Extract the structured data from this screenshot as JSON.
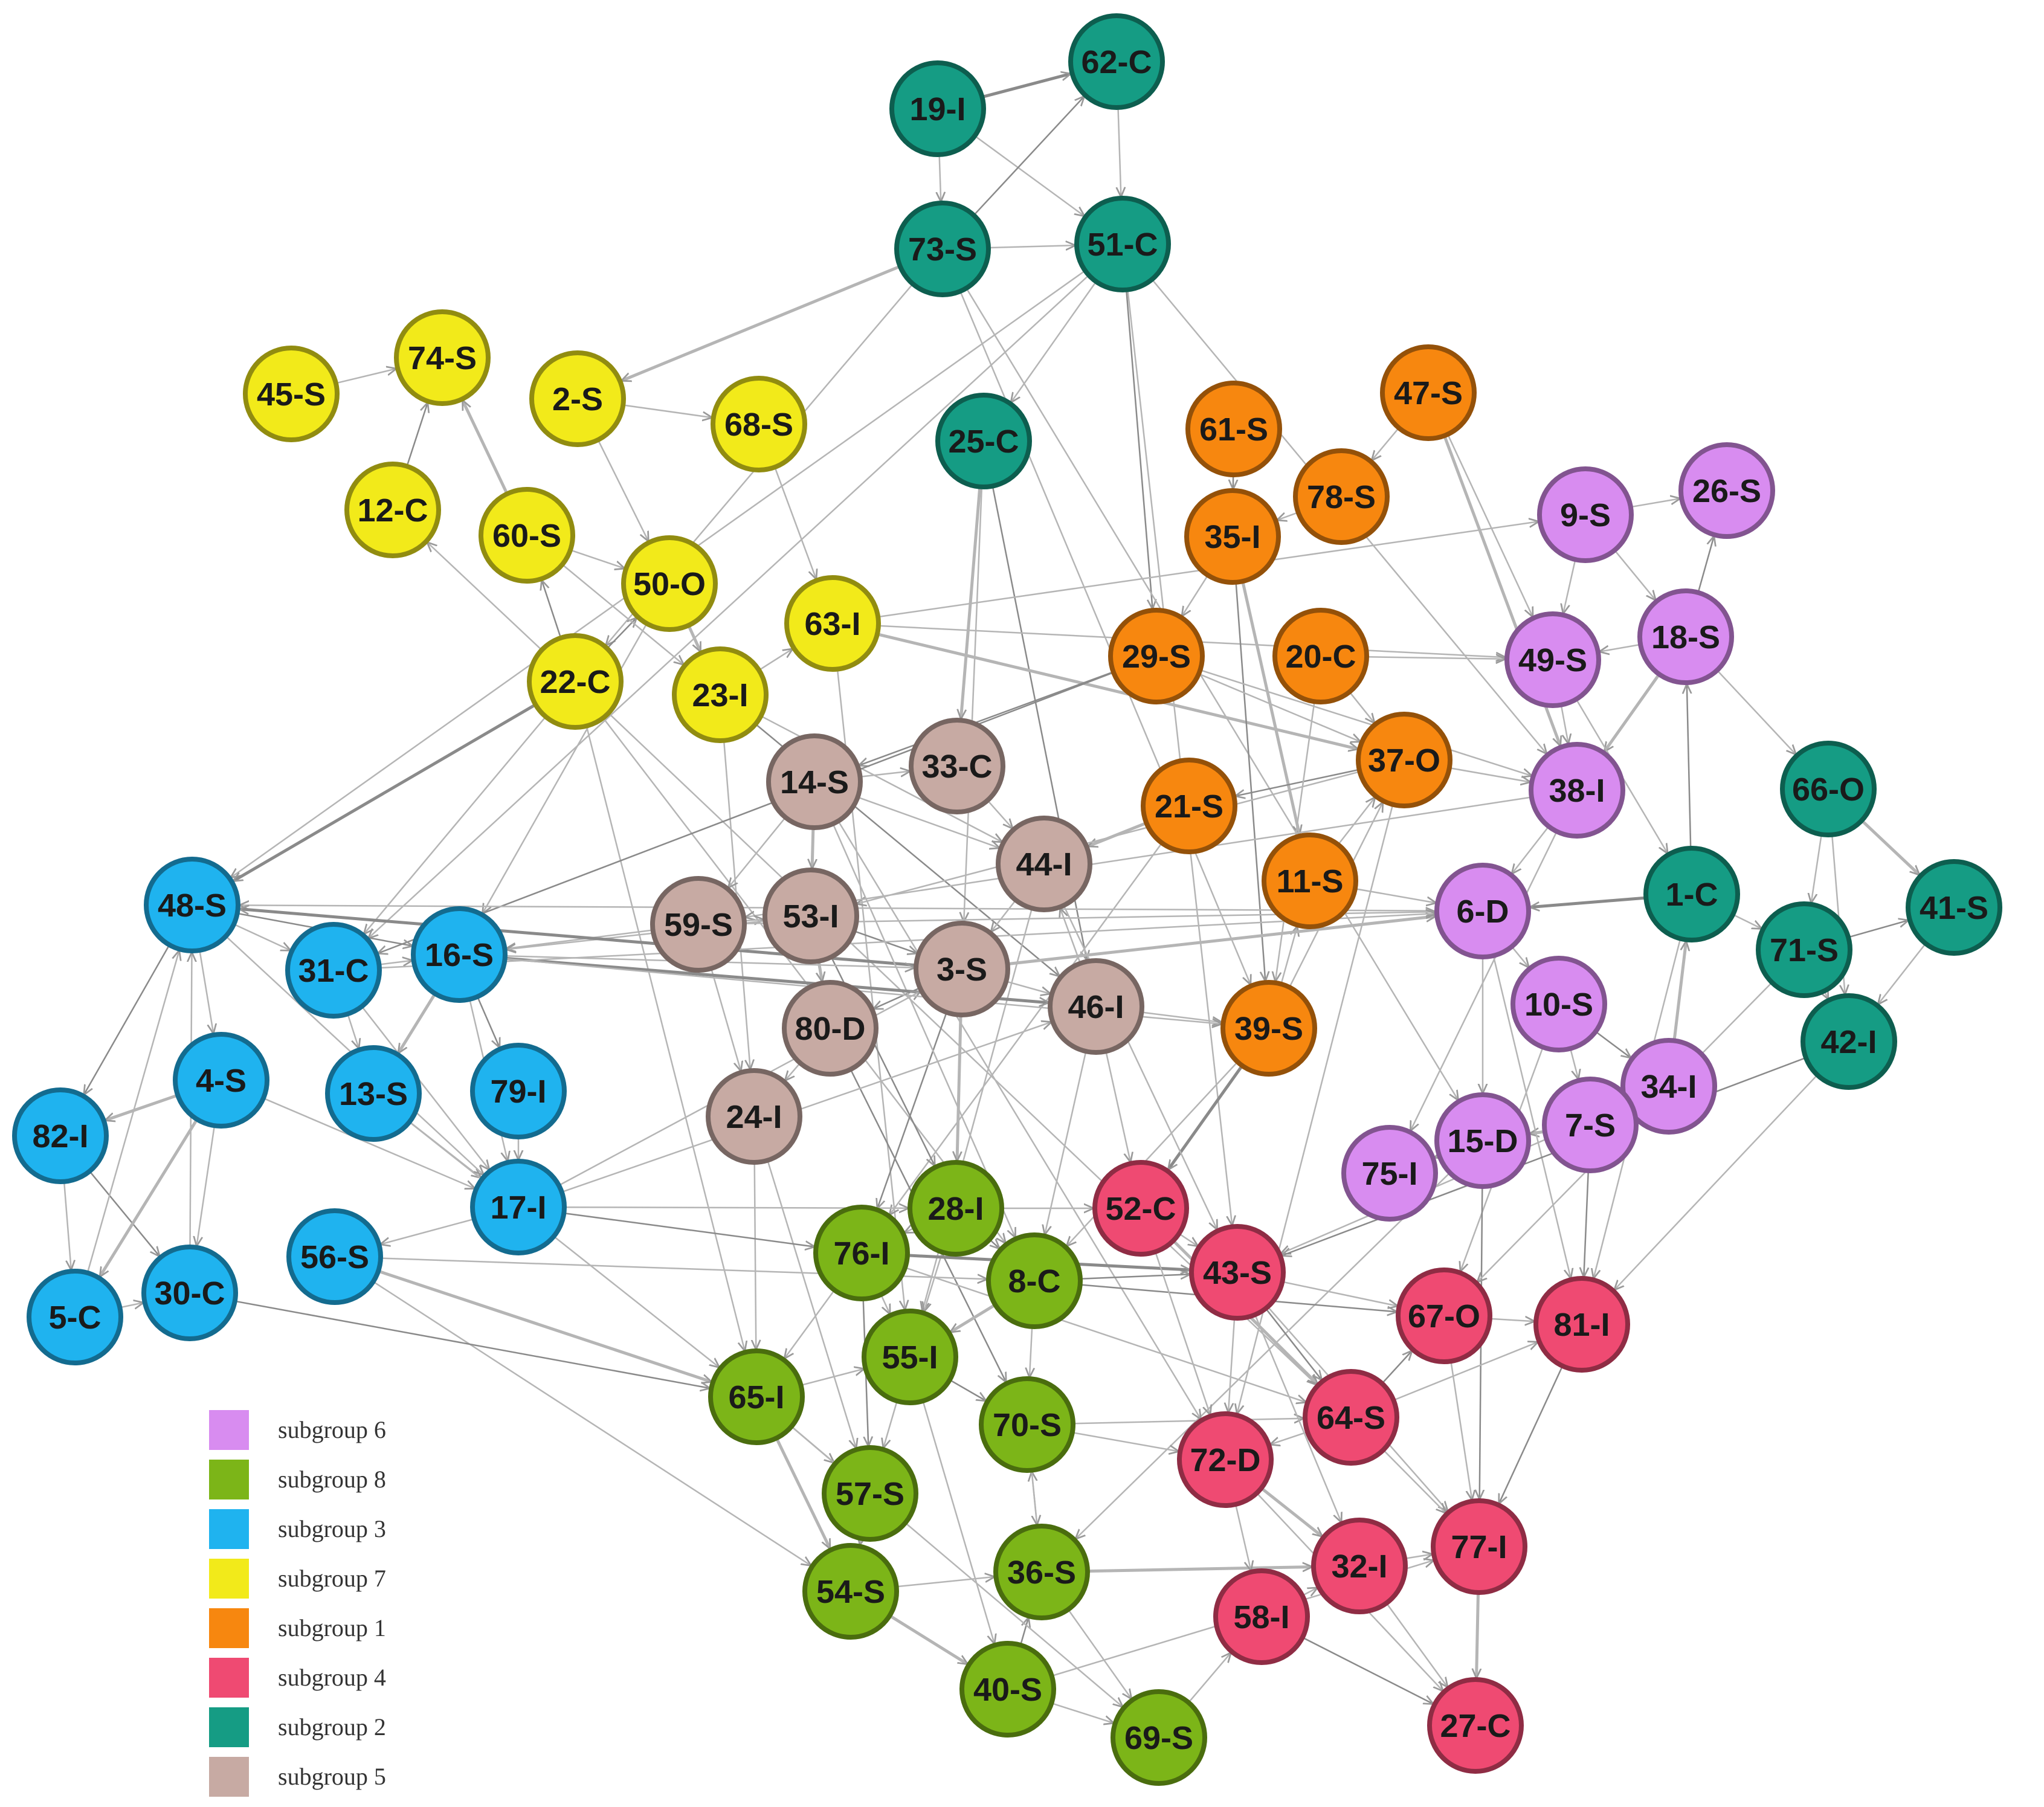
{
  "legend": [
    {
      "label": "subgroup 6",
      "color": "#d88cf0"
    },
    {
      "label": "subgroup 8",
      "color": "#7cb518"
    },
    {
      "label": "subgroup 3",
      "color": "#1fb3ef"
    },
    {
      "label": "subgroup 7",
      "color": "#f2ea1a"
    },
    {
      "label": "subgroup 1",
      "color": "#f7870f"
    },
    {
      "label": "subgroup 4",
      "color": "#ef4a72"
    },
    {
      "label": "subgroup 2",
      "color": "#159c84"
    },
    {
      "label": "subgroup 5",
      "color": "#c7aaa3"
    }
  ],
  "nodes": [
    {
      "id": "62-C",
      "group": 2
    },
    {
      "id": "19-I",
      "group": 2
    },
    {
      "id": "73-S",
      "group": 2
    },
    {
      "id": "51-C",
      "group": 2
    },
    {
      "id": "25-C",
      "group": 2
    },
    {
      "id": "66-O",
      "group": 2
    },
    {
      "id": "41-S",
      "group": 2
    },
    {
      "id": "71-S",
      "group": 2
    },
    {
      "id": "42-I",
      "group": 2
    },
    {
      "id": "1-C",
      "group": 2
    },
    {
      "id": "45-S",
      "group": 7
    },
    {
      "id": "74-S",
      "group": 7
    },
    {
      "id": "2-S",
      "group": 7
    },
    {
      "id": "68-S",
      "group": 7
    },
    {
      "id": "12-C",
      "group": 7
    },
    {
      "id": "60-S",
      "group": 7
    },
    {
      "id": "50-O",
      "group": 7
    },
    {
      "id": "63-I",
      "group": 7
    },
    {
      "id": "22-C",
      "group": 7
    },
    {
      "id": "23-I",
      "group": 7
    },
    {
      "id": "61-S",
      "group": 1
    },
    {
      "id": "47-S",
      "group": 1
    },
    {
      "id": "78-S",
      "group": 1
    },
    {
      "id": "35-I",
      "group": 1
    },
    {
      "id": "29-S",
      "group": 1
    },
    {
      "id": "20-C",
      "group": 1
    },
    {
      "id": "37-O",
      "group": 1
    },
    {
      "id": "21-S",
      "group": 1
    },
    {
      "id": "11-S",
      "group": 1
    },
    {
      "id": "39-S",
      "group": 1
    },
    {
      "id": "9-S",
      "group": 6
    },
    {
      "id": "26-S",
      "group": 6
    },
    {
      "id": "49-S",
      "group": 6
    },
    {
      "id": "18-S",
      "group": 6
    },
    {
      "id": "38-I",
      "group": 6
    },
    {
      "id": "6-D",
      "group": 6
    },
    {
      "id": "10-S",
      "group": 6
    },
    {
      "id": "34-I",
      "group": 6
    },
    {
      "id": "7-S",
      "group": 6
    },
    {
      "id": "15-D",
      "group": 6
    },
    {
      "id": "75-I",
      "group": 6
    },
    {
      "id": "14-S",
      "group": 5
    },
    {
      "id": "33-C",
      "group": 5
    },
    {
      "id": "44-I",
      "group": 5
    },
    {
      "id": "59-S",
      "group": 5
    },
    {
      "id": "53-I",
      "group": 5
    },
    {
      "id": "3-S",
      "group": 5
    },
    {
      "id": "46-I",
      "group": 5
    },
    {
      "id": "80-D",
      "group": 5
    },
    {
      "id": "24-I",
      "group": 5
    },
    {
      "id": "48-S",
      "group": 3
    },
    {
      "id": "31-C",
      "group": 3
    },
    {
      "id": "16-S",
      "group": 3
    },
    {
      "id": "4-S",
      "group": 3
    },
    {
      "id": "13-S",
      "group": 3
    },
    {
      "id": "79-I",
      "group": 3
    },
    {
      "id": "82-I",
      "group": 3
    },
    {
      "id": "17-I",
      "group": 3
    },
    {
      "id": "56-S",
      "group": 3
    },
    {
      "id": "5-C",
      "group": 3
    },
    {
      "id": "30-C",
      "group": 3
    },
    {
      "id": "28-I",
      "group": 8
    },
    {
      "id": "76-I",
      "group": 8
    },
    {
      "id": "8-C",
      "group": 8
    },
    {
      "id": "55-I",
      "group": 8
    },
    {
      "id": "65-I",
      "group": 8
    },
    {
      "id": "70-S",
      "group": 8
    },
    {
      "id": "57-S",
      "group": 8
    },
    {
      "id": "36-S",
      "group": 8
    },
    {
      "id": "54-S",
      "group": 8
    },
    {
      "id": "40-S",
      "group": 8
    },
    {
      "id": "69-S",
      "group": 8
    },
    {
      "id": "52-C",
      "group": 4
    },
    {
      "id": "43-S",
      "group": 4
    },
    {
      "id": "67-O",
      "group": 4
    },
    {
      "id": "81-I",
      "group": 4
    },
    {
      "id": "64-S",
      "group": 4
    },
    {
      "id": "72-D",
      "group": 4
    },
    {
      "id": "32-I",
      "group": 4
    },
    {
      "id": "77-I",
      "group": 4
    },
    {
      "id": "58-I",
      "group": 4
    },
    {
      "id": "27-C",
      "group": 4
    }
  ],
  "edges": [
    [
      "19-I",
      "62-C"
    ],
    [
      "62-C",
      "51-C"
    ],
    [
      "19-I",
      "73-S"
    ],
    [
      "73-S",
      "51-C"
    ],
    [
      "19-I",
      "51-C"
    ],
    [
      "73-S",
      "62-C"
    ],
    [
      "51-C",
      "25-C"
    ],
    [
      "73-S",
      "2-S"
    ],
    [
      "73-S",
      "22-C"
    ],
    [
      "51-C",
      "31-C"
    ],
    [
      "51-C",
      "29-S"
    ],
    [
      "51-C",
      "38-I"
    ],
    [
      "73-S",
      "39-S"
    ],
    [
      "51-C",
      "48-S"
    ],
    [
      "25-C",
      "33-C"
    ],
    [
      "25-C",
      "46-I"
    ],
    [
      "25-C",
      "3-S"
    ],
    [
      "73-S",
      "15-D"
    ],
    [
      "51-C",
      "43-S"
    ],
    [
      "45-S",
      "74-S"
    ],
    [
      "12-C",
      "74-S"
    ],
    [
      "60-S",
      "74-S"
    ],
    [
      "2-S",
      "68-S"
    ],
    [
      "2-S",
      "50-O"
    ],
    [
      "60-S",
      "50-O"
    ],
    [
      "22-C",
      "60-S"
    ],
    [
      "22-C",
      "12-C"
    ],
    [
      "68-S",
      "63-I"
    ],
    [
      "50-O",
      "23-I"
    ],
    [
      "23-I",
      "63-I"
    ],
    [
      "22-C",
      "50-O"
    ],
    [
      "60-S",
      "23-I"
    ],
    [
      "63-I",
      "9-S"
    ],
    [
      "63-I",
      "49-S"
    ],
    [
      "23-I",
      "44-I"
    ],
    [
      "22-C",
      "48-S"
    ],
    [
      "22-C",
      "31-C"
    ],
    [
      "22-C",
      "65-I"
    ],
    [
      "22-C",
      "8-C"
    ],
    [
      "23-I",
      "24-I"
    ],
    [
      "23-I",
      "46-I"
    ],
    [
      "50-O",
      "16-S"
    ],
    [
      "63-I",
      "37-O"
    ],
    [
      "63-I",
      "55-I"
    ],
    [
      "22-C",
      "64-S"
    ],
    [
      "61-S",
      "35-I"
    ],
    [
      "47-S",
      "78-S"
    ],
    [
      "78-S",
      "35-I"
    ],
    [
      "35-I",
      "29-S"
    ],
    [
      "35-I",
      "11-S"
    ],
    [
      "35-I",
      "39-S"
    ],
    [
      "29-S",
      "37-O"
    ],
    [
      "20-C",
      "37-O"
    ],
    [
      "20-C",
      "49-S"
    ],
    [
      "37-O",
      "38-I"
    ],
    [
      "37-O",
      "21-S"
    ],
    [
      "21-S",
      "44-I"
    ],
    [
      "11-S",
      "37-O"
    ],
    [
      "39-S",
      "11-S"
    ],
    [
      "39-S",
      "37-O"
    ],
    [
      "29-S",
      "14-S"
    ],
    [
      "37-O",
      "53-I"
    ],
    [
      "47-S",
      "49-S"
    ],
    [
      "47-S",
      "38-I"
    ],
    [
      "20-C",
      "39-S"
    ],
    [
      "29-S",
      "31-C"
    ],
    [
      "39-S",
      "8-C"
    ],
    [
      "37-O",
      "72-D"
    ],
    [
      "21-S",
      "76-I"
    ],
    [
      "11-S",
      "6-D"
    ],
    [
      "39-S",
      "52-C"
    ],
    [
      "29-S",
      "38-I"
    ],
    [
      "9-S",
      "26-S"
    ],
    [
      "9-S",
      "49-S"
    ],
    [
      "18-S",
      "49-S"
    ],
    [
      "18-S",
      "26-S"
    ],
    [
      "49-S",
      "38-I"
    ],
    [
      "18-S",
      "38-I"
    ],
    [
      "38-I",
      "6-D"
    ],
    [
      "6-D",
      "10-S"
    ],
    [
      "10-S",
      "34-I"
    ],
    [
      "10-S",
      "7-S"
    ],
    [
      "6-D",
      "15-D"
    ],
    [
      "15-D",
      "75-I"
    ],
    [
      "7-S",
      "15-D"
    ],
    [
      "1-C",
      "18-S"
    ],
    [
      "49-S",
      "1-C"
    ],
    [
      "38-I",
      "75-I"
    ],
    [
      "6-D",
      "81-I"
    ],
    [
      "10-S",
      "67-O"
    ],
    [
      "15-D",
      "77-I"
    ],
    [
      "34-I",
      "1-C"
    ],
    [
      "9-S",
      "18-S"
    ],
    [
      "38-I",
      "59-S"
    ],
    [
      "6-D",
      "48-S"
    ],
    [
      "7-S",
      "81-I"
    ],
    [
      "34-I",
      "43-S"
    ],
    [
      "15-D",
      "36-S"
    ],
    [
      "66-O",
      "41-S"
    ],
    [
      "66-O",
      "71-S"
    ],
    [
      "71-S",
      "41-S"
    ],
    [
      "71-S",
      "42-I"
    ],
    [
      "1-C",
      "71-S"
    ],
    [
      "41-S",
      "42-I"
    ],
    [
      "18-S",
      "66-O"
    ],
    [
      "1-C",
      "6-D"
    ],
    [
      "42-I",
      "81-I"
    ],
    [
      "71-S",
      "67-O"
    ],
    [
      "1-C",
      "81-I"
    ],
    [
      "66-O",
      "42-I"
    ],
    [
      "42-I",
      "43-S"
    ],
    [
      "14-S",
      "33-C"
    ],
    [
      "14-S",
      "53-I"
    ],
    [
      "14-S",
      "59-S"
    ],
    [
      "59-S",
      "53-I"
    ],
    [
      "53-I",
      "3-S"
    ],
    [
      "3-S",
      "46-I"
    ],
    [
      "46-I",
      "44-I"
    ],
    [
      "33-C",
      "44-I"
    ],
    [
      "53-I",
      "80-D"
    ],
    [
      "3-S",
      "80-D"
    ],
    [
      "80-D",
      "24-I"
    ],
    [
      "59-S",
      "24-I"
    ],
    [
      "44-I",
      "3-S"
    ],
    [
      "14-S",
      "44-I"
    ],
    [
      "3-S",
      "76-I"
    ],
    [
      "3-S",
      "28-I"
    ],
    [
      "24-I",
      "65-I"
    ],
    [
      "46-I",
      "8-C"
    ],
    [
      "44-I",
      "55-I"
    ],
    [
      "53-I",
      "28-I"
    ],
    [
      "59-S",
      "16-S"
    ],
    [
      "46-I",
      "39-S"
    ],
    [
      "3-S",
      "6-D"
    ],
    [
      "24-I",
      "57-S"
    ],
    [
      "80-D",
      "70-S"
    ],
    [
      "14-S",
      "72-D"
    ],
    [
      "44-I",
      "43-S"
    ],
    [
      "46-I",
      "52-C"
    ],
    [
      "53-I",
      "16-S"
    ],
    [
      "3-S",
      "48-S"
    ],
    [
      "59-S",
      "6-D"
    ],
    [
      "14-S",
      "8-C"
    ],
    [
      "48-S",
      "31-C"
    ],
    [
      "31-C",
      "16-S"
    ],
    [
      "48-S",
      "16-S"
    ],
    [
      "48-S",
      "4-S"
    ],
    [
      "4-S",
      "82-I"
    ],
    [
      "4-S",
      "30-C"
    ],
    [
      "82-I",
      "5-C"
    ],
    [
      "82-I",
      "30-C"
    ],
    [
      "5-C",
      "30-C"
    ],
    [
      "30-C",
      "48-S"
    ],
    [
      "5-C",
      "48-S"
    ],
    [
      "16-S",
      "13-S"
    ],
    [
      "16-S",
      "79-I"
    ],
    [
      "31-C",
      "13-S"
    ],
    [
      "13-S",
      "17-I"
    ],
    [
      "79-I",
      "17-I"
    ],
    [
      "17-I",
      "56-S"
    ],
    [
      "48-S",
      "82-I"
    ],
    [
      "4-S",
      "5-C"
    ],
    [
      "4-S",
      "17-I"
    ],
    [
      "31-C",
      "17-I"
    ],
    [
      "16-S",
      "17-I"
    ],
    [
      "17-I",
      "76-I"
    ],
    [
      "17-I",
      "28-I"
    ],
    [
      "56-S",
      "54-S"
    ],
    [
      "56-S",
      "65-I"
    ],
    [
      "56-S",
      "8-C"
    ],
    [
      "30-C",
      "65-I"
    ],
    [
      "17-I",
      "46-I"
    ],
    [
      "13-S",
      "65-I"
    ],
    [
      "48-S",
      "17-I"
    ],
    [
      "16-S",
      "3-S"
    ],
    [
      "16-S",
      "46-I"
    ],
    [
      "17-I",
      "3-S"
    ],
    [
      "31-C",
      "6-D"
    ],
    [
      "16-S",
      "39-S"
    ],
    [
      "28-I",
      "76-I"
    ],
    [
      "28-I",
      "8-C"
    ],
    [
      "76-I",
      "55-I"
    ],
    [
      "8-C",
      "55-I"
    ],
    [
      "76-I",
      "65-I"
    ],
    [
      "65-I",
      "55-I"
    ],
    [
      "55-I",
      "70-S"
    ],
    [
      "55-I",
      "57-S"
    ],
    [
      "65-I",
      "57-S"
    ],
    [
      "57-S",
      "54-S"
    ],
    [
      "54-S",
      "40-S"
    ],
    [
      "40-S",
      "36-S"
    ],
    [
      "36-S",
      "70-S"
    ],
    [
      "40-S",
      "69-S"
    ],
    [
      "36-S",
      "69-S"
    ],
    [
      "8-C",
      "70-S"
    ],
    [
      "76-I",
      "57-S"
    ],
    [
      "65-I",
      "54-S"
    ],
    [
      "70-S",
      "36-S"
    ],
    [
      "28-I",
      "55-I"
    ],
    [
      "55-I",
      "40-S"
    ],
    [
      "8-C",
      "43-S"
    ],
    [
      "28-I",
      "52-C"
    ],
    [
      "70-S",
      "72-D"
    ],
    [
      "36-S",
      "32-I"
    ],
    [
      "69-S",
      "58-I"
    ],
    [
      "8-C",
      "67-O"
    ],
    [
      "76-I",
      "64-S"
    ],
    [
      "40-S",
      "77-I"
    ],
    [
      "54-S",
      "36-S"
    ],
    [
      "70-S",
      "64-S"
    ],
    [
      "76-I",
      "43-S"
    ],
    [
      "65-I",
      "69-S"
    ],
    [
      "52-C",
      "43-S"
    ],
    [
      "43-S",
      "67-O"
    ],
    [
      "67-O",
      "81-I"
    ],
    [
      "43-S",
      "64-S"
    ],
    [
      "64-S",
      "72-D"
    ],
    [
      "72-D",
      "32-I"
    ],
    [
      "32-I",
      "77-I"
    ],
    [
      "67-O",
      "77-I"
    ],
    [
      "81-I",
      "77-I"
    ],
    [
      "72-D",
      "58-I"
    ],
    [
      "58-I",
      "32-I"
    ],
    [
      "32-I",
      "27-C"
    ],
    [
      "77-I",
      "27-C"
    ],
    [
      "64-S",
      "67-O"
    ],
    [
      "43-S",
      "77-I"
    ],
    [
      "52-C",
      "72-D"
    ],
    [
      "43-S",
      "72-D"
    ],
    [
      "64-S",
      "81-I"
    ],
    [
      "58-I",
      "27-C"
    ],
    [
      "52-C",
      "64-S"
    ],
    [
      "64-S",
      "77-I"
    ],
    [
      "72-D",
      "27-C"
    ],
    [
      "43-S",
      "32-I"
    ]
  ]
}
